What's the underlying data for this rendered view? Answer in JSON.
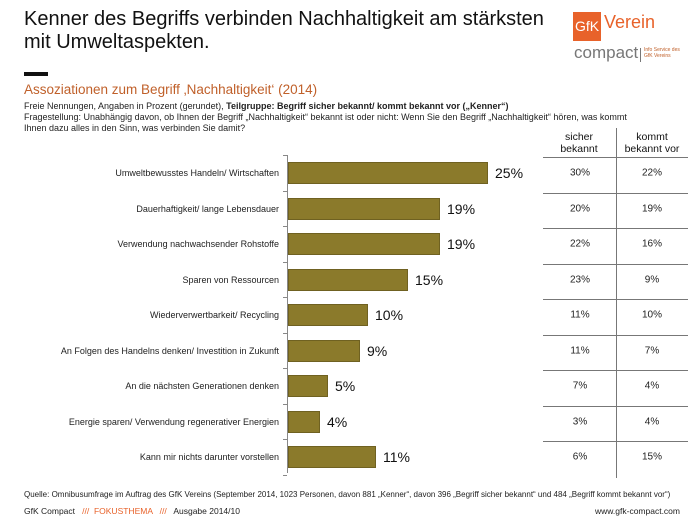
{
  "header": {
    "title": "Kenner des Begriffs verbinden Nachhaltigkeit am stärksten mit Umweltaspekten.",
    "subtitle": "Assoziationen zum  Begriff ‚Nachhaltigkeit‘ (2014)",
    "note1_plain": "Freie Nennungen,  Angaben in Prozent (gerundet),  ",
    "note1_bold": "Teilgruppe: Begriff sicher bekannt/ kommt bekannt vor („Kenner“)",
    "note2": "Fragestellung: Unabhängig davon, ob Ihnen der Begriff „Nachhaltigkeit“ bekannt ist oder nicht: Wenn Sie den Begriff „Nachhaltigkeit“ hören, was kommt Ihnen dazu alles in den Sinn, was verbinden  Sie damit?"
  },
  "logo": {
    "gfk": "GfK",
    "verein": "Verein",
    "compact": "compact",
    "info": "Info Service des GfK Vereins"
  },
  "chart_data": {
    "type": "bar",
    "orientation": "horizontal",
    "unit": "%",
    "bar_color": "#8b7a2b",
    "categories": [
      "Umweltbewusstes Handeln/ Wirtschaften",
      "Dauerhaftigkeit/ lange Lebensdauer",
      "Verwendung nachwachsender Rohstoffe",
      "Sparen von Ressourcen",
      "Wiederverwertbarkeit/ Recycling",
      "An Folgen des Handelns denken/ Investition in  Zukunft",
      "An die nächsten Generationen denken",
      "Energie sparen/ Verwendung regenerativer Energien",
      "Kann mir nichts darunter vorstellen"
    ],
    "values": [
      25,
      19,
      19,
      15,
      10,
      9,
      5,
      4,
      11
    ],
    "labels": [
      "25%",
      "19%",
      "19%",
      "15%",
      "10%",
      "9%",
      "5%",
      "4%",
      "11%"
    ]
  },
  "table": {
    "headers": [
      "sicher\nbekannt",
      "kommt\nbekannt vor"
    ],
    "rows": [
      [
        "30%",
        "22%"
      ],
      [
        "20%",
        "19%"
      ],
      [
        "22%",
        "16%"
      ],
      [
        "23%",
        "9%"
      ],
      [
        "11%",
        "10%"
      ],
      [
        "11%",
        "7%"
      ],
      [
        "7%",
        "4%"
      ],
      [
        "3%",
        "4%"
      ],
      [
        "6%",
        "15%"
      ]
    ]
  },
  "footer": {
    "source": "Quelle: Omnibusumfrage im Auftrag des GfK Vereins (September 2014, 1023 Personen, davon 881 „Kenner“, davon 396 „Begriff sicher bekannt“ und 484 „Begriff kommt bekannt vor“)",
    "brand": "GfK Compact",
    "sep": "///",
    "topic": "FOKUSTHEMA",
    "issue": "Ausgabe 2014/10",
    "url": "www.gfk-compact.com"
  }
}
